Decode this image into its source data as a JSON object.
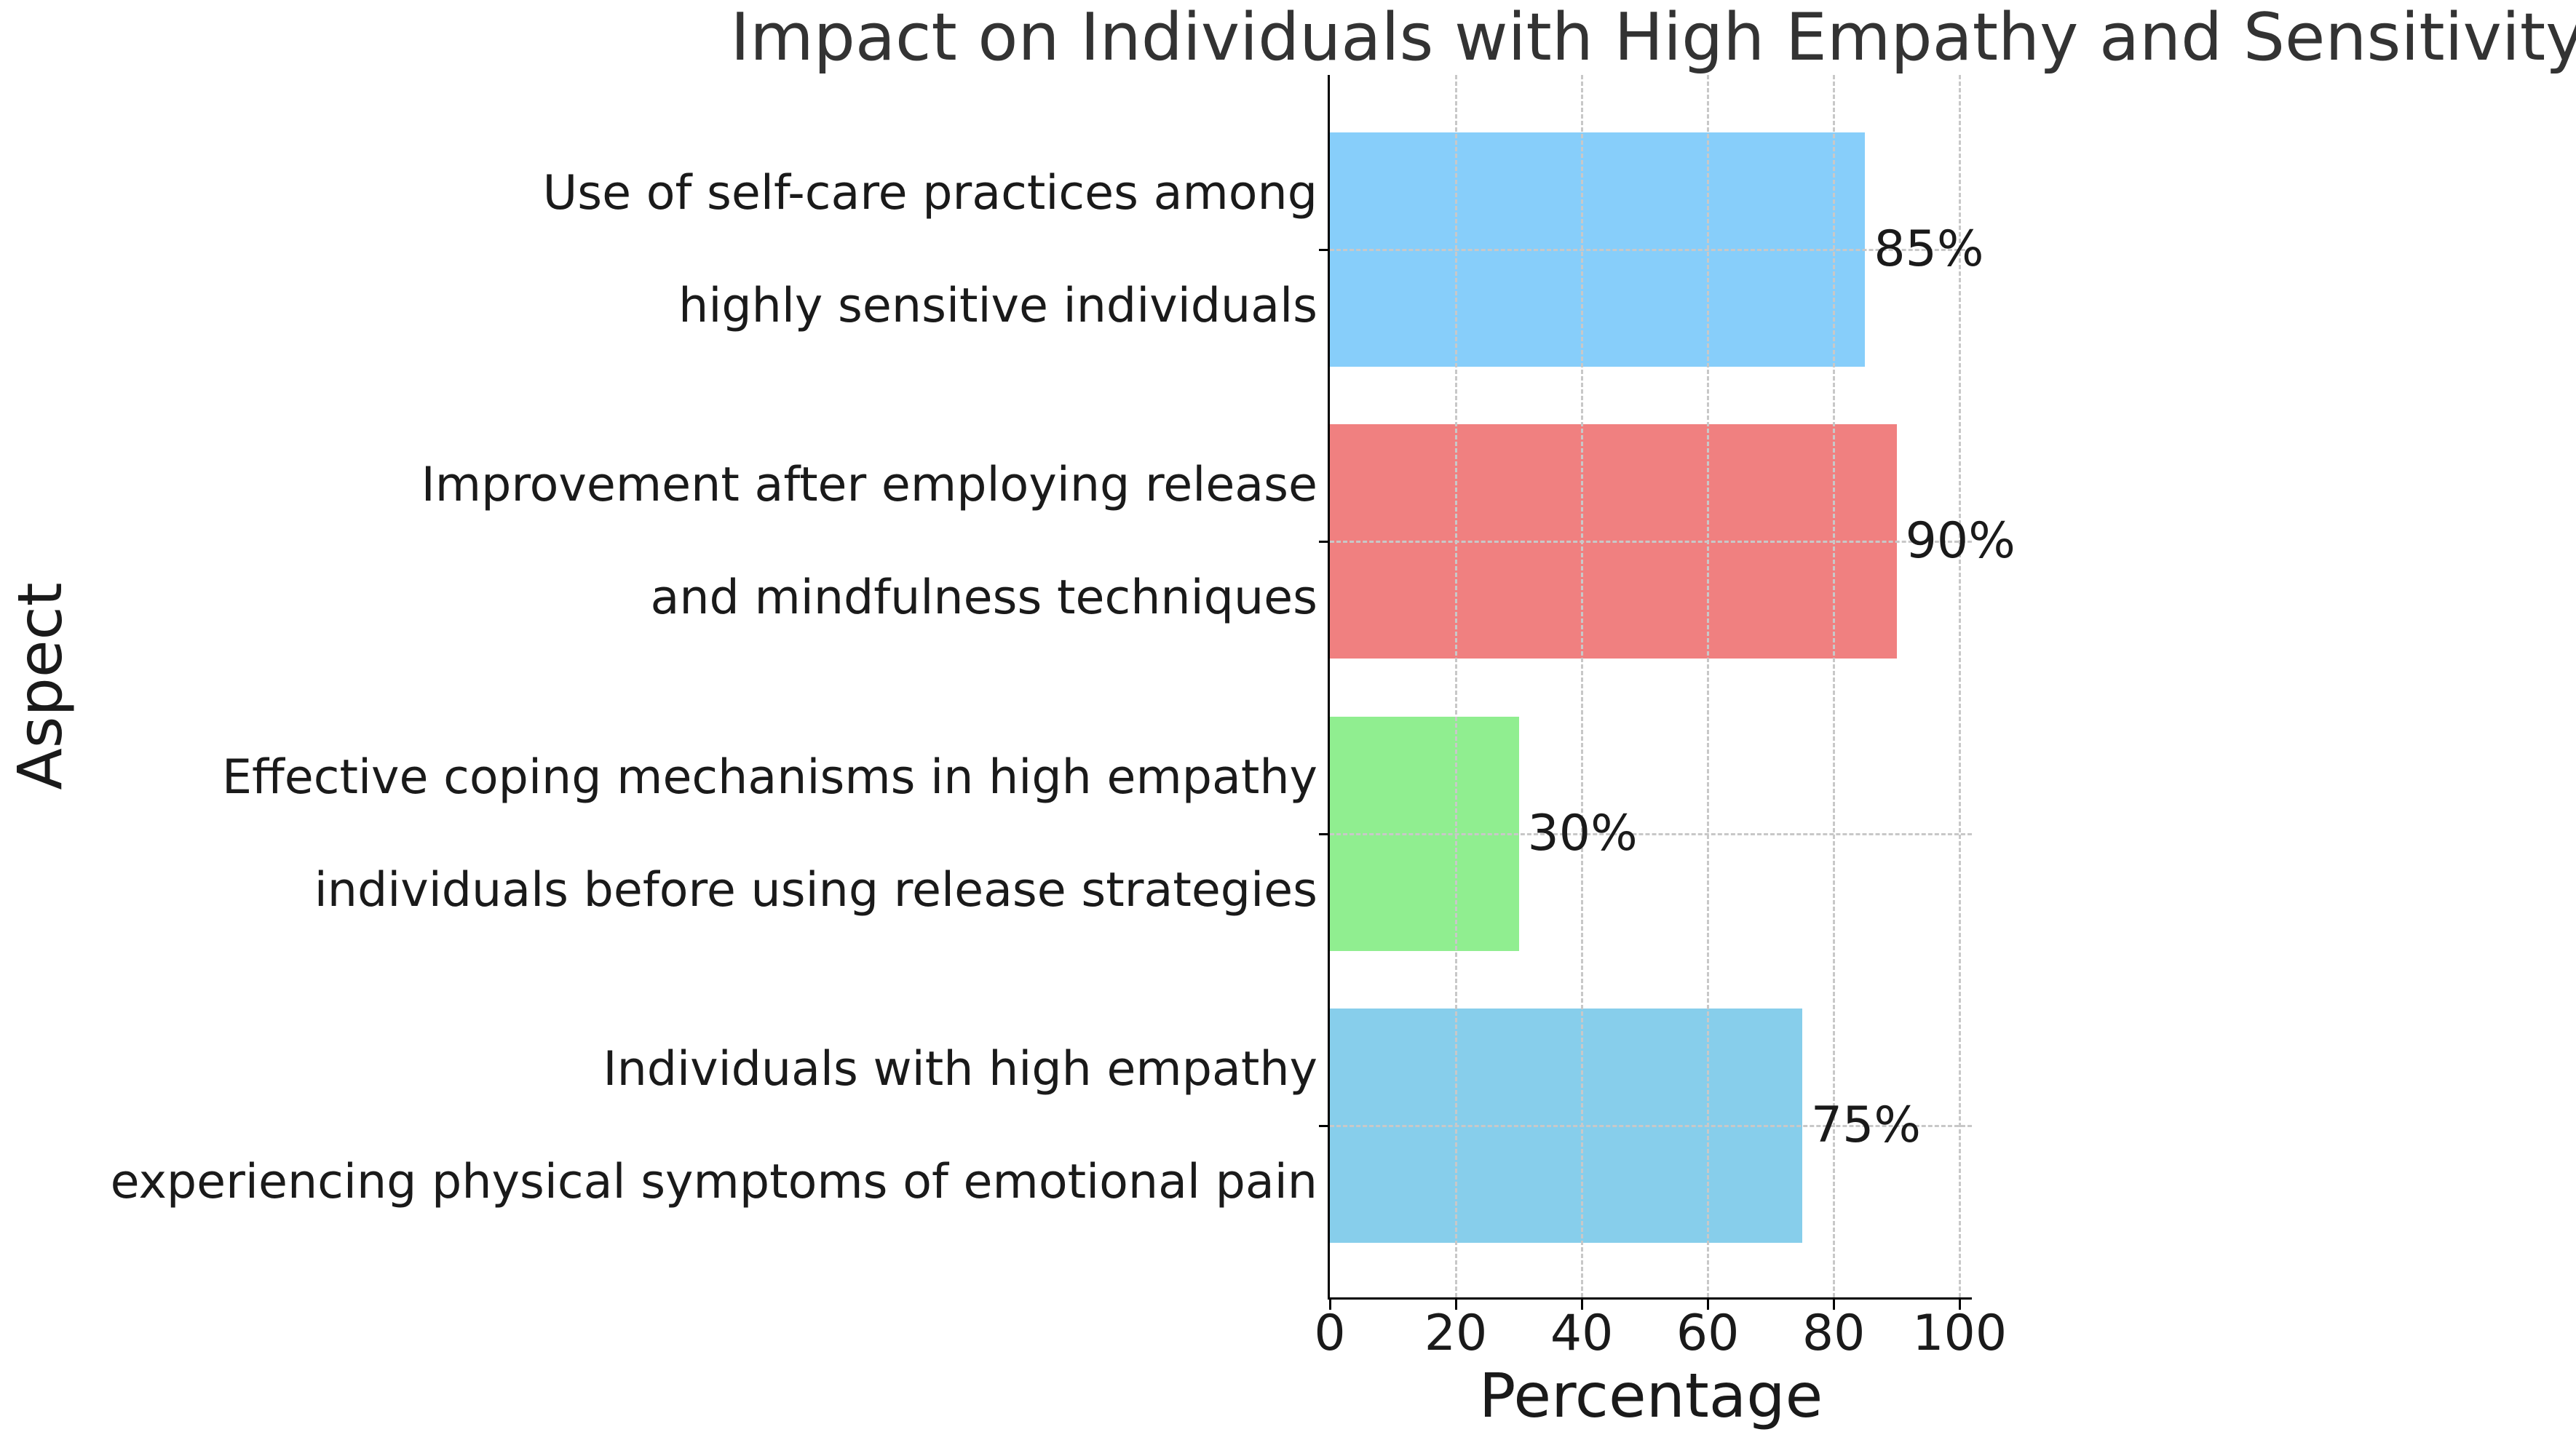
{
  "chart_data": {
    "type": "bar",
    "orientation": "horizontal",
    "title": "Impact on Individuals with High Empathy and Sensitivity",
    "xlabel": "Percentage",
    "ylabel": "Aspect",
    "xlim": [
      0,
      102
    ],
    "xticks": [
      0,
      20,
      40,
      60,
      80,
      100
    ],
    "grid": "dashed, drawn over bars",
    "legend_position": "none",
    "categories": [
      {
        "line1": "Use of self-care practices among",
        "line2": "highly sensitive individuals"
      },
      {
        "line1": "Improvement after employing release",
        "line2": "and mindfulness techniques"
      },
      {
        "line1": "Effective coping mechanisms in high empathy",
        "line2": "individuals before using release strategies"
      },
      {
        "line1": "Individuals with high empathy",
        "line2": "experiencing physical symptoms of emotional pain"
      }
    ],
    "values": [
      85,
      90,
      30,
      75
    ],
    "value_labels": [
      "85%",
      "90%",
      "30%",
      "75%"
    ],
    "bar_colors": [
      "#87CEFA",
      "#F08080",
      "#90EE90",
      "#87CEEB"
    ],
    "grid_color": "#c8c8c8",
    "spine_color": "#000000",
    "title_color": "#333333",
    "text_color": "#1a1a1a",
    "background_color": "#ffffff"
  }
}
